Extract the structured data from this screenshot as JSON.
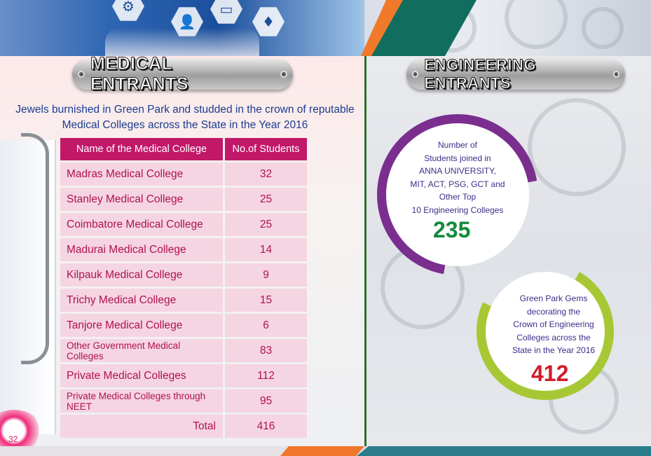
{
  "medical": {
    "heading": "MEDICAL ENTRANTS",
    "intro": "Jewels burnished in Green Park and studded in the crown of reputable Medical Colleges across the State in the Year 2016",
    "table": {
      "headers": [
        "Name of the Medical College",
        "No.of Students"
      ],
      "rows": [
        {
          "name": "Madras Medical College",
          "count": "32"
        },
        {
          "name": "Stanley Medical College",
          "count": "25"
        },
        {
          "name": "Coimbatore Medical College",
          "count": "25"
        },
        {
          "name": "Madurai Medical College",
          "count": "14"
        },
        {
          "name": "Kilpauk Medical College",
          "count": "9"
        },
        {
          "name": "Trichy Medical College",
          "count": "15"
        },
        {
          "name": "Tanjore Medical College",
          "count": "6"
        },
        {
          "name": "Other Government Medical Colleges",
          "count": "83"
        },
        {
          "name": "Private Medical Colleges",
          "count": "112"
        },
        {
          "name": "Private Medical Colleges through NEET",
          "count": "95"
        }
      ],
      "total_label": "Total",
      "total_value": "416"
    }
  },
  "engineering": {
    "heading": "ENGINEERING ENTRANTS",
    "circle1": {
      "lines": [
        "Number of",
        "Students joined in",
        "ANNA UNIVERSITY,",
        "MIT, ACT, PSG, GCT and",
        "Other Top",
        "10 Engineering Colleges"
      ],
      "value": "235"
    },
    "circle2": {
      "lines": [
        "Green Park Gems",
        "decorating the",
        "Crown of Engineering",
        "Colleges across the",
        "State in the Year 2016"
      ],
      "value": "412"
    }
  },
  "page_number": "32",
  "colors": {
    "table_header": "#c2186a",
    "table_cell": "#f5d5e2",
    "cell_text": "#b0114f",
    "ring1": "#7a2f8f",
    "ring2": "#a7c834",
    "value_green": "#138a3b",
    "value_red": "#d01e2a"
  },
  "icons": [
    "user-icon",
    "monitor-icon",
    "gear-icon",
    "drops-icon",
    "stethoscope-icon"
  ]
}
